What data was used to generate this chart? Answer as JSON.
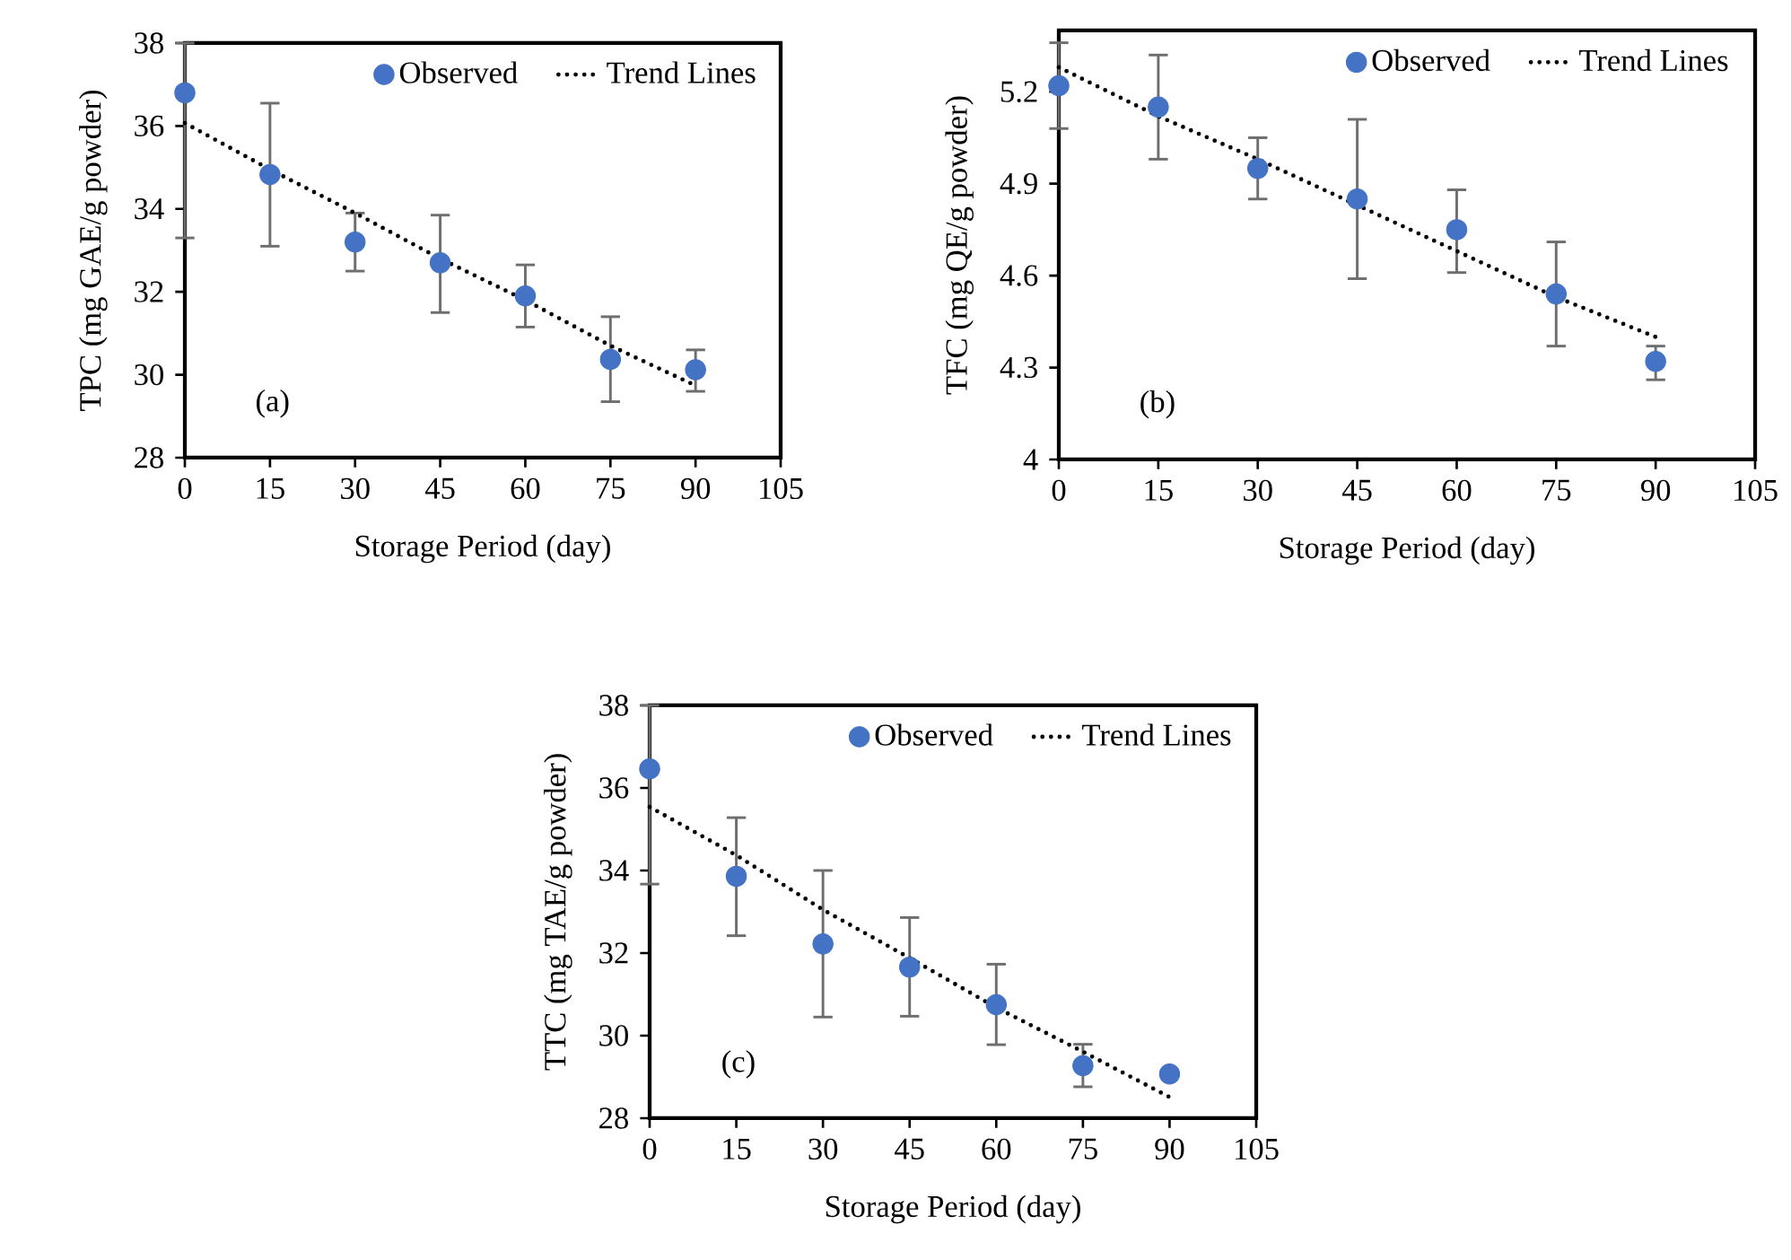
{
  "chart_data": [
    {
      "type": "scatter",
      "xlabel": "Storage Period (day)",
      "ylabel": "TPC  (mg GAE/g  powder)",
      "xlim": [
        0,
        105
      ],
      "xticks": [
        0,
        15,
        30,
        45,
        60,
        75,
        90,
        105
      ],
      "ylim": [
        28,
        38
      ],
      "yticks": [
        28,
        30,
        32,
        34,
        36,
        38
      ],
      "legend": "top right",
      "annotations": [
        "(a)"
      ],
      "series": [
        {
          "name": "Observed",
          "type": "scatter",
          "marker": "circle",
          "color": "#4472c4",
          "x": [
            0,
            15,
            30,
            45,
            60,
            75,
            90
          ],
          "values": [
            36.8,
            34.83,
            33.2,
            32.7,
            31.9,
            30.37,
            30.12
          ],
          "errors": [
            [
              33.3,
              38
            ],
            [
              33.1,
              36.55
            ],
            [
              32.5,
              33.9
            ],
            [
              31.5,
              33.85
            ],
            [
              31.15,
              32.65
            ],
            [
              29.35,
              31.4
            ],
            [
              29.6,
              30.6
            ]
          ]
        },
        {
          "name": "Trend Lines",
          "type": "line",
          "marker": "none",
          "line_style": "dotted",
          "color": "#000000",
          "x": [
            0,
            15,
            30,
            45,
            60,
            75,
            90
          ],
          "values": [
            36.07,
            34.95,
            33.9,
            32.8,
            31.8,
            30.7,
            29.74
          ]
        }
      ]
    },
    {
      "type": "scatter",
      "xlabel": "Storage Period (day)",
      "ylabel": "TFC (mg QE/g powder)",
      "xlim": [
        0,
        105
      ],
      "xticks": [
        0,
        15,
        30,
        45,
        60,
        75,
        90,
        105
      ],
      "ylim": [
        4,
        5.4
      ],
      "yticks": [
        4,
        4.3,
        4.6,
        4.9,
        5.2
      ],
      "legend": "top right",
      "annotations": [
        "(b)"
      ],
      "series": [
        {
          "name": "Observed",
          "type": "scatter",
          "marker": "circle",
          "color": "#4472c4",
          "x": [
            0,
            15,
            30,
            45,
            60,
            75,
            90
          ],
          "values": [
            5.22,
            5.15,
            4.95,
            4.85,
            4.75,
            4.54,
            4.32
          ],
          "errors": [
            [
              5.08,
              5.36
            ],
            [
              4.98,
              5.32
            ],
            [
              4.85,
              5.05
            ],
            [
              4.59,
              5.11
            ],
            [
              4.61,
              4.88
            ],
            [
              4.37,
              4.71
            ],
            [
              4.26,
              4.37
            ]
          ]
        },
        {
          "name": "Trend Lines",
          "type": "line",
          "marker": "none",
          "line_style": "dotted",
          "color": "#000000",
          "x": [
            0,
            15,
            30,
            45,
            60,
            75,
            90
          ],
          "values": [
            5.28,
            5.12,
            4.98,
            4.83,
            4.68,
            4.53,
            4.4
          ]
        }
      ]
    },
    {
      "type": "scatter",
      "xlabel": "Storage Period (day)",
      "ylabel": "TTC (mg TAE/g powder)",
      "xlim": [
        0,
        105
      ],
      "xticks": [
        0,
        15,
        30,
        45,
        60,
        75,
        90,
        105
      ],
      "ylim": [
        28,
        38
      ],
      "yticks": [
        28,
        30,
        32,
        34,
        36,
        38
      ],
      "legend": "top right",
      "annotations": [
        "(c)"
      ],
      "series": [
        {
          "name": "Observed",
          "type": "scatter",
          "marker": "circle",
          "color": "#4472c4",
          "x": [
            0,
            15,
            30,
            45,
            60,
            75,
            90
          ],
          "values": [
            36.46,
            33.86,
            32.22,
            31.66,
            30.75,
            29.27,
            29.07
          ],
          "errors": [
            [
              33.67,
              38
            ],
            [
              32.42,
              35.28
            ],
            [
              30.45,
              34.0
            ],
            [
              30.47,
              32.86
            ],
            [
              29.78,
              31.73
            ],
            [
              28.76,
              29.79
            ],
            null
          ]
        },
        {
          "name": "Trend Lines",
          "type": "line",
          "marker": "none",
          "line_style": "dotted",
          "color": "#000000",
          "x": [
            0,
            15,
            30,
            45,
            60,
            75,
            90
          ],
          "values": [
            35.54,
            34.37,
            33.05,
            31.88,
            30.68,
            29.61,
            28.51
          ]
        }
      ]
    }
  ]
}
